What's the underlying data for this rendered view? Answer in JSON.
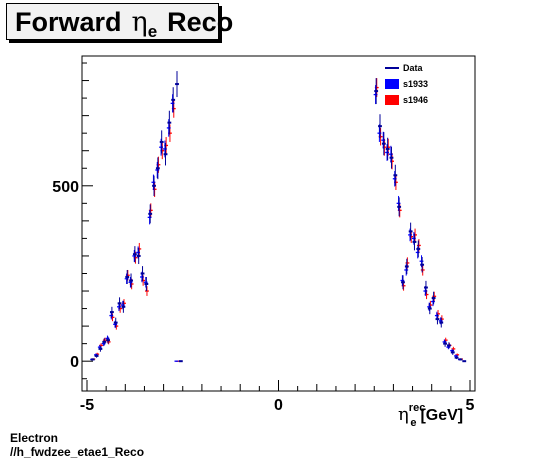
{
  "title": {
    "main": "Forward",
    "symbol": "η",
    "sub": "e",
    "rest": "Reco"
  },
  "footer": {
    "line1": "Electron",
    "line2": "//h_fwdzee_etae1_Reco"
  },
  "xaxis_label": {
    "symbol": "η",
    "sup": "rec",
    "sub": "e",
    "unit": "[GeV]"
  },
  "legend": [
    {
      "label": "Data",
      "style": "line",
      "color": "#000099"
    },
    {
      "label": "s1933",
      "style": "box",
      "color": "#0000ff"
    },
    {
      "label": "s1946",
      "style": "box",
      "color": "#ff0000"
    }
  ],
  "chart_data": {
    "type": "scatter",
    "xlim": [
      -5,
      5
    ],
    "ylim": [
      -85,
      870
    ],
    "xticks": [
      -5,
      0,
      5
    ],
    "xtick_labels": [
      "-5",
      "0",
      "5"
    ],
    "yticks": [
      0,
      500
    ],
    "ytick_labels": [
      "0",
      "500"
    ],
    "grid": false,
    "legend_position": "top-right",
    "series": [
      {
        "name": "Data",
        "color": "#000099",
        "x": [
          -4.85,
          -4.75,
          -4.65,
          -4.55,
          -4.45,
          -4.35,
          -4.25,
          -4.15,
          -4.05,
          -3.95,
          -3.85,
          -3.75,
          -3.65,
          -3.55,
          -3.45,
          -3.35,
          -3.25,
          -3.15,
          -3.05,
          -2.95,
          -2.85,
          -2.75,
          -2.65,
          -2.55,
          2.55,
          2.65,
          2.75,
          2.85,
          2.95,
          3.05,
          3.15,
          3.25,
          3.35,
          3.45,
          3.55,
          3.65,
          3.75,
          3.85,
          3.95,
          4.05,
          4.15,
          4.25,
          4.35,
          4.45,
          4.55,
          4.65,
          4.75,
          4.85
        ],
        "y": [
          5,
          15,
          35,
          55,
          60,
          140,
          110,
          165,
          155,
          240,
          230,
          305,
          300,
          250,
          220,
          420,
          500,
          550,
          625,
          590,
          680,
          745,
          790,
          0,
          770,
          670,
          620,
          605,
          580,
          530,
          440,
          225,
          270,
          370,
          340,
          320,
          275,
          210,
          150,
          180,
          120,
          110,
          50,
          45,
          25,
          10,
          5,
          0
        ],
        "err": [
          3,
          5,
          8,
          10,
          10,
          15,
          14,
          17,
          17,
          20,
          20,
          23,
          23,
          21,
          20,
          27,
          29,
          31,
          33,
          32,
          34,
          36,
          37,
          0,
          37,
          34,
          33,
          32,
          31,
          30,
          27,
          20,
          22,
          25,
          24,
          24,
          22,
          19,
          16,
          18,
          15,
          14,
          9,
          9,
          7,
          4,
          3,
          0
        ]
      },
      {
        "name": "s1933",
        "color": "#0000ff",
        "x": [
          -4.85,
          -4.75,
          -4.65,
          -4.55,
          -4.45,
          -4.35,
          -4.25,
          -4.15,
          -4.05,
          -3.95,
          -3.85,
          -3.75,
          -3.65,
          -3.55,
          -3.45,
          -3.35,
          -3.25,
          -3.15,
          -3.05,
          -2.95,
          -2.85,
          -2.75,
          -2.65,
          2.55,
          2.65,
          2.75,
          2.85,
          2.95,
          3.05,
          3.15,
          3.25,
          3.35,
          3.45,
          3.55,
          3.65,
          3.75,
          3.85,
          3.95,
          4.05,
          4.15,
          4.25,
          4.35,
          4.45,
          4.55,
          4.65,
          4.75
        ],
        "y": [
          5,
          18,
          40,
          50,
          65,
          130,
          105,
          155,
          160,
          235,
          225,
          300,
          310,
          240,
          225,
          410,
          510,
          545,
          610,
          605,
          665,
          735,
          0,
          760,
          650,
          630,
          595,
          590,
          520,
          450,
          230,
          260,
          360,
          350,
          310,
          285,
          200,
          155,
          170,
          130,
          115,
          55,
          40,
          30,
          15,
          5
        ],
        "err": [
          2,
          4,
          6,
          7,
          8,
          11,
          10,
          12,
          12,
          15,
          15,
          17,
          17,
          15,
          15,
          20,
          22,
          23,
          24,
          24,
          25,
          26,
          0,
          27,
          25,
          24,
          24,
          24,
          22,
          21,
          15,
          16,
          18,
          18,
          17,
          17,
          14,
          12,
          13,
          11,
          10,
          7,
          6,
          5,
          4,
          2
        ]
      },
      {
        "name": "s1946",
        "color": "#ff0000",
        "x": [
          -4.85,
          -4.75,
          -4.65,
          -4.55,
          -4.45,
          -4.35,
          -4.25,
          -4.15,
          -4.05,
          -3.95,
          -3.85,
          -3.75,
          -3.65,
          -3.55,
          -3.45,
          -3.35,
          -3.25,
          -3.15,
          -3.05,
          -2.95,
          -2.85,
          -2.75,
          -2.65,
          2.55,
          2.65,
          2.75,
          2.85,
          2.95,
          3.05,
          3.15,
          3.25,
          3.35,
          3.45,
          3.55,
          3.65,
          3.75,
          3.85,
          3.95,
          4.05,
          4.15,
          4.25,
          4.35,
          4.45,
          4.55,
          4.65,
          4.75
        ],
        "y": [
          6,
          20,
          45,
          60,
          55,
          125,
          100,
          150,
          165,
          245,
          220,
          295,
          320,
          230,
          200,
          430,
          490,
          560,
          600,
          615,
          650,
          720,
          0,
          780,
          640,
          610,
          610,
          570,
          510,
          430,
          215,
          280,
          355,
          360,
          330,
          260,
          190,
          160,
          185,
          135,
          120,
          60,
          45,
          35,
          18,
          6
        ],
        "err": [
          2,
          4,
          6,
          7,
          7,
          11,
          10,
          12,
          12,
          15,
          15,
          17,
          17,
          15,
          14,
          20,
          22,
          23,
          24,
          24,
          25,
          26,
          0,
          27,
          25,
          24,
          24,
          23,
          22,
          20,
          14,
          16,
          18,
          18,
          18,
          16,
          13,
          12,
          13,
          11,
          11,
          7,
          6,
          6,
          4,
          2
        ]
      }
    ]
  }
}
